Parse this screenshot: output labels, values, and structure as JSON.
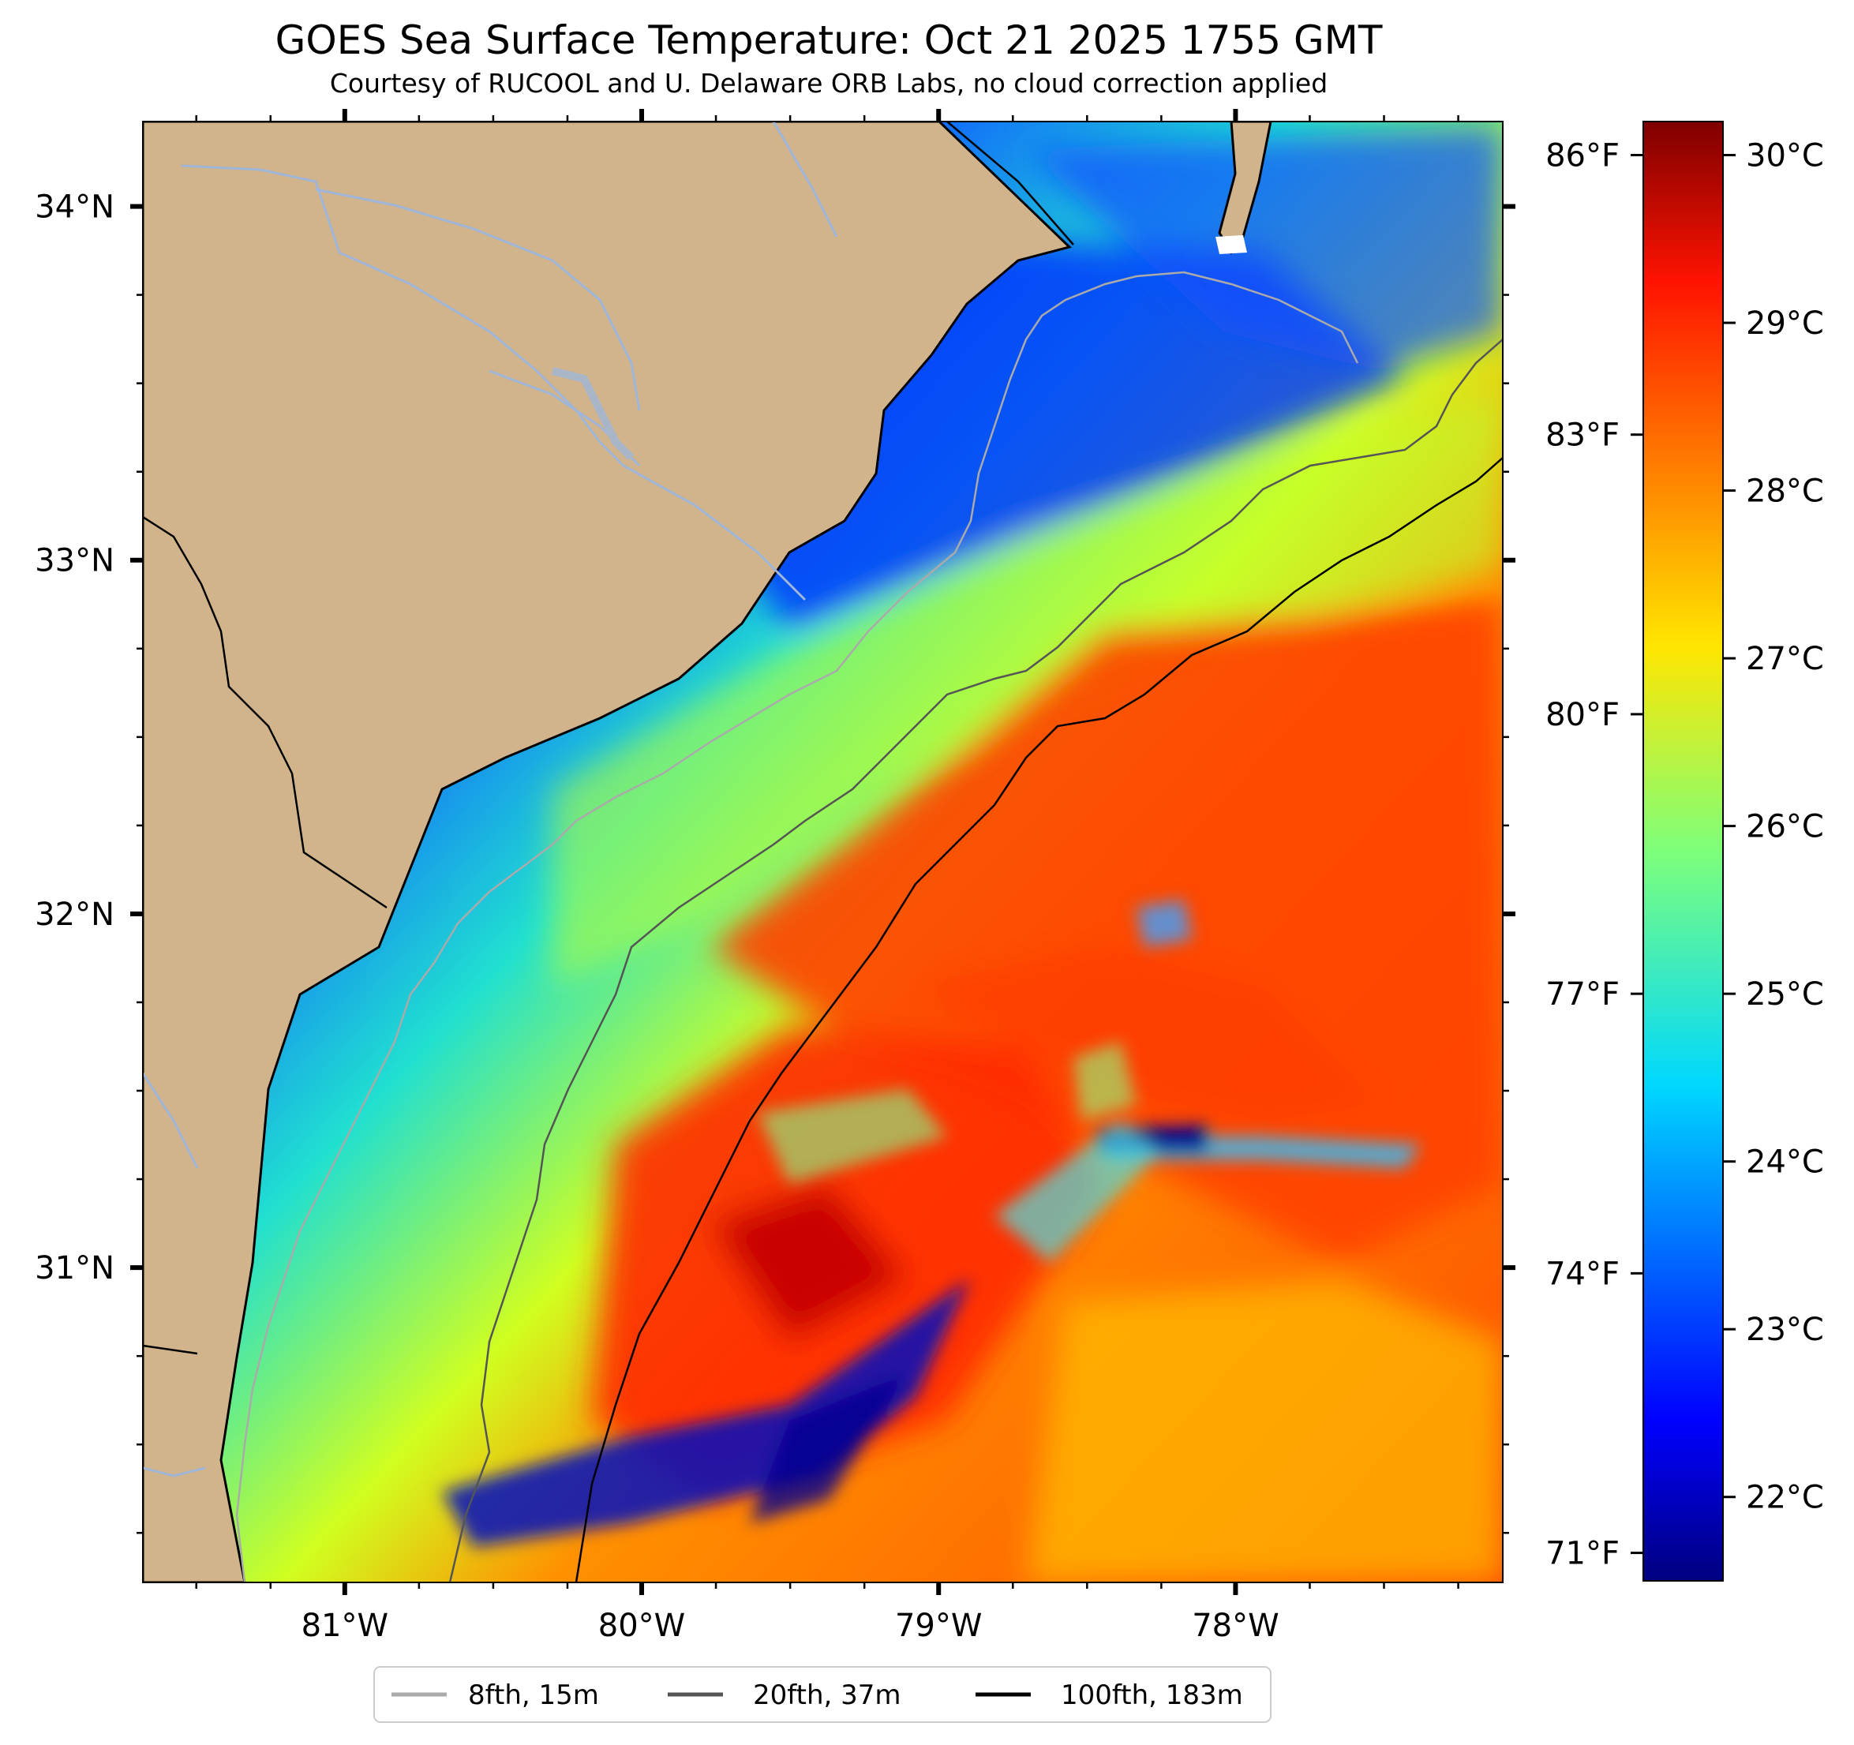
{
  "title": "GOES Sea Surface Temperature: Oct 21 2025 1755 GMT",
  "subtitle": "Courtesy of RUCOOL and U. Delaware ORB Labs, no cloud correction applied",
  "map": {
    "type": "sea-surface-temperature",
    "lon_range": [
      -81.68,
      -77.1
    ],
    "lat_range": [
      30.11,
      34.24
    ],
    "land_color": "#d2b48c",
    "colormap": "jet",
    "longitude_labels": [
      {
        "lon": -81,
        "label": "81°W"
      },
      {
        "lon": -80,
        "label": "80°W"
      },
      {
        "lon": -79,
        "label": "79°W"
      },
      {
        "lon": -78,
        "label": "78°W"
      }
    ],
    "latitude_labels": [
      {
        "lat": 34,
        "label": "34°N"
      },
      {
        "lat": 33,
        "label": "33°N"
      },
      {
        "lat": 32,
        "label": "32°N"
      },
      {
        "lat": 31,
        "label": "31°N"
      }
    ],
    "fahrenheit_labels": [
      {
        "f": 86,
        "label": "86°F"
      },
      {
        "f": 83,
        "label": "83°F"
      },
      {
        "f": 80,
        "label": "80°F"
      },
      {
        "f": 77,
        "label": "77°F"
      },
      {
        "f": 74,
        "label": "74°F"
      },
      {
        "f": 71,
        "label": "71°F"
      }
    ]
  },
  "colorbar": {
    "range_c": [
      21.5,
      30.2
    ],
    "labels": [
      {
        "c": 30,
        "label": "30°C"
      },
      {
        "c": 29,
        "label": "29°C"
      },
      {
        "c": 28,
        "label": "28°C"
      },
      {
        "c": 27,
        "label": "27°C"
      },
      {
        "c": 26,
        "label": "26°C"
      },
      {
        "c": 25,
        "label": "25°C"
      },
      {
        "c": 24,
        "label": "24°C"
      },
      {
        "c": 23,
        "label": "23°C"
      },
      {
        "c": 22,
        "label": "22°C"
      }
    ]
  },
  "legend": [
    {
      "label": "8fth, 15m",
      "color": "#aaaaaa"
    },
    {
      "label": "20fth, 37m",
      "color": "#555555"
    },
    {
      "label": "100fth, 183m",
      "color": "#000000"
    }
  ]
}
